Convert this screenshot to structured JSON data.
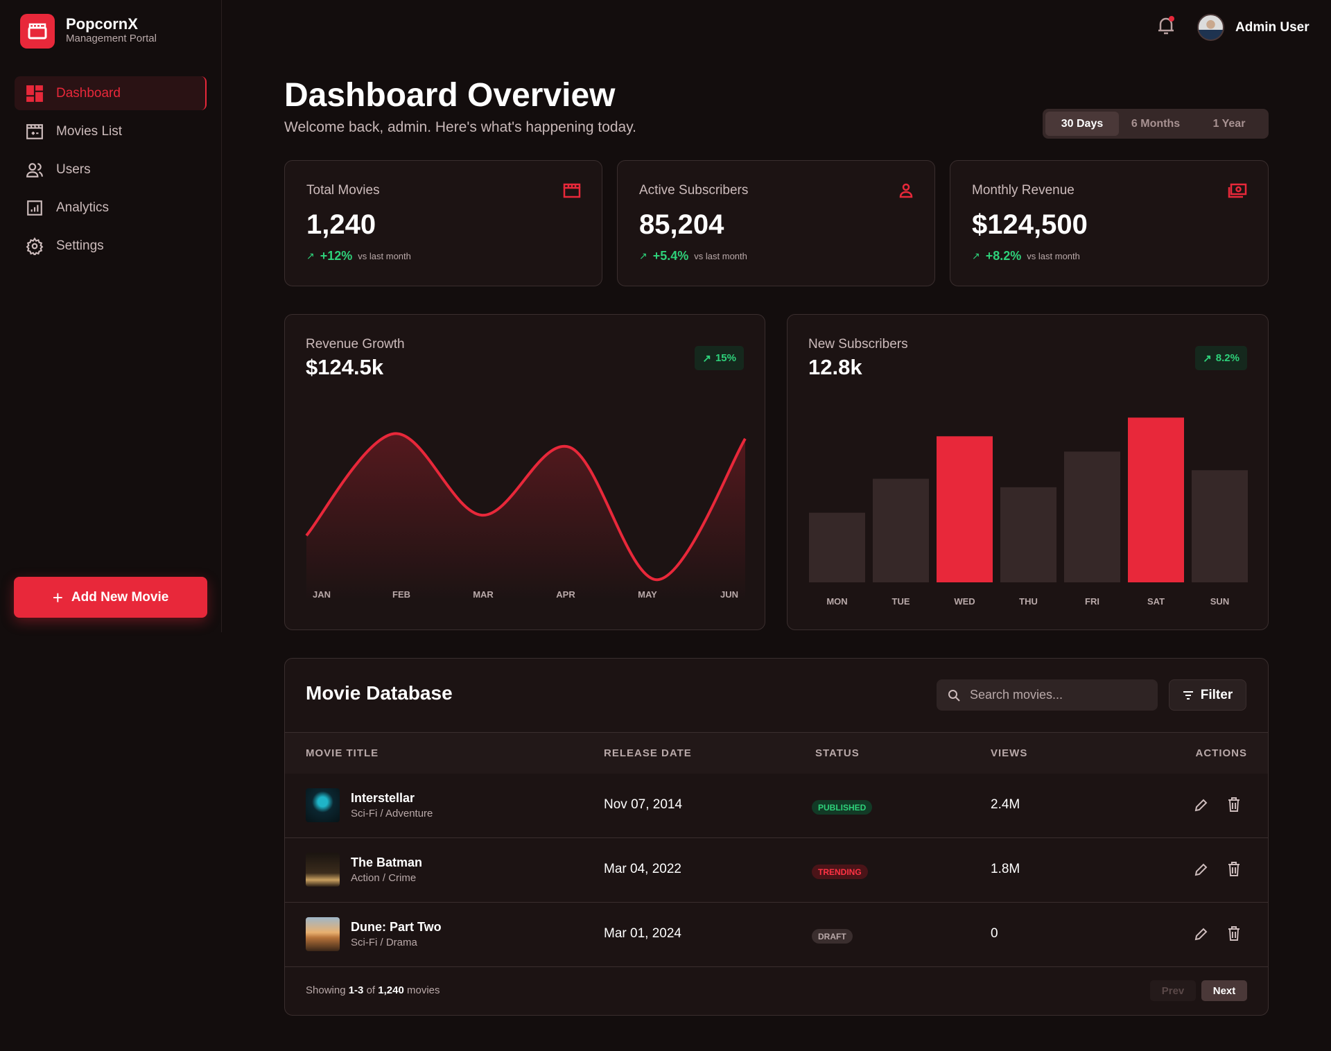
{
  "brand": {
    "name": "PopcornX",
    "subtitle": "Management Portal"
  },
  "sidebar": {
    "items": [
      {
        "label": "Dashboard",
        "icon": "dashboard-icon"
      },
      {
        "label": "Movies List",
        "icon": "movies-icon"
      },
      {
        "label": "Users",
        "icon": "users-icon"
      },
      {
        "label": "Analytics",
        "icon": "analytics-icon"
      },
      {
        "label": "Settings",
        "icon": "gear-icon"
      }
    ],
    "add_button": "Add New Movie"
  },
  "header": {
    "user_name": "Admin User",
    "has_notification": true
  },
  "page": {
    "title": "Dashboard Overview",
    "subtitle": "Welcome back, admin. Here's what's happening today."
  },
  "range_tabs": [
    "30 Days",
    "6 Months",
    "1 Year"
  ],
  "stats": [
    {
      "label": "Total Movies",
      "value": "1,240",
      "change": "+12%",
      "vs": "vs last month"
    },
    {
      "label": "Active Subscribers",
      "value": "85,204",
      "change": "+5.4%",
      "vs": "vs last month"
    },
    {
      "label": "Monthly Revenue",
      "value": "$124,500",
      "change": "+8.2%",
      "vs": "vs last month"
    }
  ],
  "colors": {
    "accent": "#e8283a",
    "positive": "#2ed17a",
    "bar_muted": "#362828"
  },
  "chart_data": [
    {
      "type": "line",
      "title": "Revenue Growth",
      "value": "$124.5k",
      "badge": "15%",
      "categories": [
        "JAN",
        "FEB",
        "MAR",
        "APR",
        "MAY",
        "JUN"
      ],
      "values": [
        30,
        90,
        42,
        82,
        4,
        87
      ],
      "ylim": [
        0,
        100
      ],
      "grid": false
    },
    {
      "type": "bar",
      "title": "New Subscribers",
      "value": "12.8k",
      "badge": "8.2%",
      "categories": [
        "MON",
        "TUE",
        "WED",
        "THU",
        "FRI",
        "SAT",
        "SUN"
      ],
      "values": [
        41,
        61,
        86,
        56,
        77,
        97,
        66
      ],
      "highlight": [
        "WED",
        "SAT"
      ],
      "ylim": [
        0,
        100
      ],
      "grid": false
    }
  ],
  "table": {
    "title": "Movie Database",
    "search_placeholder": "Search movies...",
    "filter_label": "Filter",
    "columns": [
      "MOVIE TITLE",
      "RELEASE DATE",
      "STATUS",
      "VIEWS",
      "ACTIONS"
    ],
    "rows": [
      {
        "title": "Interstellar",
        "genre": "Sci-Fi / Adventure",
        "date": "Nov 07, 2014",
        "status": "PUBLISHED",
        "views": "2.4M"
      },
      {
        "title": "The Batman",
        "genre": "Action / Crime",
        "date": "Mar 04, 2022",
        "status": "TRENDING",
        "views": "1.8M"
      },
      {
        "title": "Dune: Part Two",
        "genre": "Sci-Fi / Drama",
        "date": "Mar 01, 2024",
        "status": "DRAFT",
        "views": "0"
      }
    ],
    "footer": {
      "prefix": "Showing",
      "range": "1-3",
      "of": "of",
      "total": "1,240",
      "suffix": "movies"
    },
    "prev": "Prev",
    "next": "Next"
  }
}
